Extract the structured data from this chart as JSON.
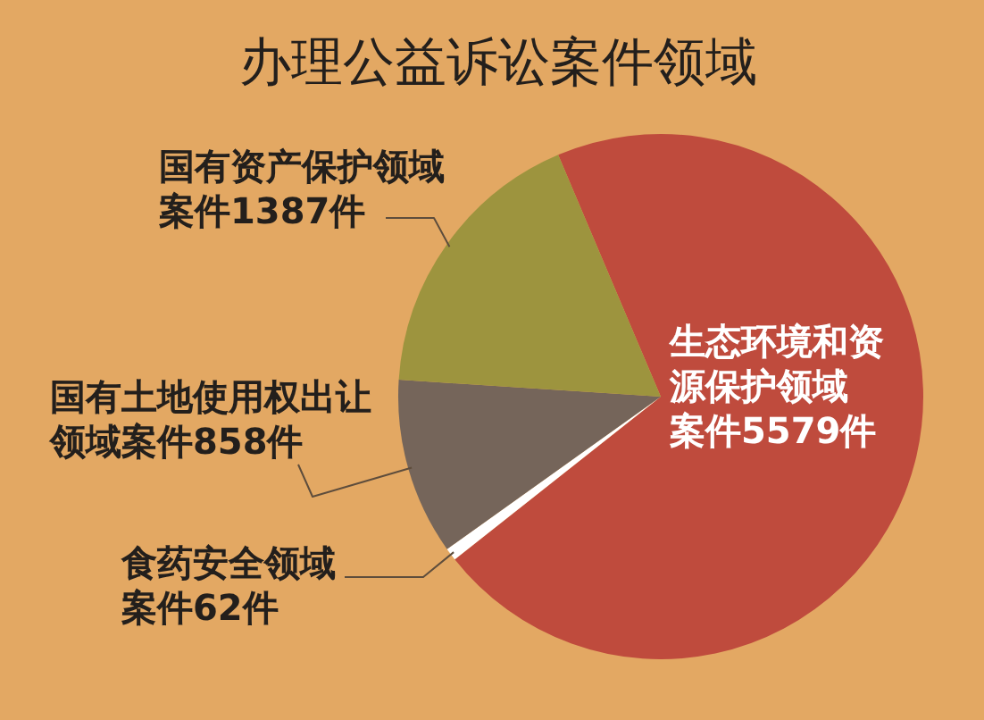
{
  "chart_data": {
    "type": "pie",
    "title": "办理公益诉讼案件领域",
    "categories": [
      "生态环境和资源保护领域",
      "食药安全领域",
      "国有土地使用权出让领域",
      "国有资产保护领域"
    ],
    "values": [
      5579,
      62,
      858,
      1387
    ],
    "colors": [
      "#bf4b3d",
      "#ffffff",
      "#75655a",
      "#9d943e"
    ],
    "value_labels": [
      "案件5579件",
      "案件62件",
      "案件858件",
      "案件1387件"
    ],
    "legend": false
  }
}
